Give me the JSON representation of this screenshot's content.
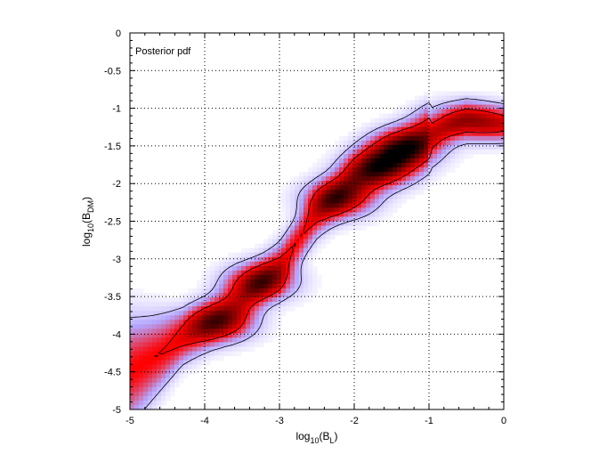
{
  "chart_data": {
    "type": "heatmap",
    "title": "",
    "annotation": "Posterior pdf",
    "xlabel": {
      "base": "log",
      "sub": "10",
      "open": "(B",
      "var_sub": "L",
      "close": ")"
    },
    "ylabel": {
      "base": "log",
      "sub": "10",
      "open": "(B",
      "var_sub": "DM",
      "close": ")"
    },
    "xlim": [
      -5,
      0
    ],
    "ylim": [
      -5,
      0
    ],
    "x_ticks": [
      -5,
      -4,
      -3,
      -2,
      -1,
      0
    ],
    "x_tick_labels": [
      "-5",
      "-4",
      "-3",
      "-2",
      "-1",
      "0"
    ],
    "y_ticks": [
      0,
      -0.5,
      -1,
      -1.5,
      -2,
      -2.5,
      -3,
      -3.5,
      -4,
      -4.5,
      -5
    ],
    "y_tick_labels": [
      "0",
      "-0.5",
      "-1",
      "-1.5",
      "-2",
      "-2.5",
      "-3",
      "-3.5",
      "-4",
      "-4.5",
      "-5"
    ],
    "grid": true,
    "colormap": [
      "#ffffff",
      "#b3a6ff",
      "#ff0000",
      "#000000"
    ],
    "density_ridge": {
      "description": "posterior density concentrated along a diagonal ridge",
      "ridge_x": [
        -5.0,
        -4.5,
        -4.0,
        -3.5,
        -3.0,
        -2.5,
        -2.0,
        -1.5,
        -1.0,
        -0.5,
        0.0
      ],
      "ridge_y": [
        -4.5,
        -4.2,
        -3.9,
        -3.55,
        -3.1,
        -2.4,
        -1.95,
        -1.65,
        -1.35,
        -1.15,
        -1.2
      ],
      "peaks": [
        {
          "x": -3.8,
          "y": -3.85,
          "weight": 0.85
        },
        {
          "x": -3.25,
          "y": -3.3,
          "weight": 0.85
        },
        {
          "x": -2.2,
          "y": -2.2,
          "weight": 0.9
        },
        {
          "x": -1.65,
          "y": -1.8,
          "weight": 0.95
        },
        {
          "x": -1.3,
          "y": -1.52,
          "weight": 1.0
        },
        {
          "x": -0.65,
          "y": -1.15,
          "weight": 0.5
        },
        {
          "x": -0.2,
          "y": -1.22,
          "weight": 0.4
        }
      ]
    }
  }
}
